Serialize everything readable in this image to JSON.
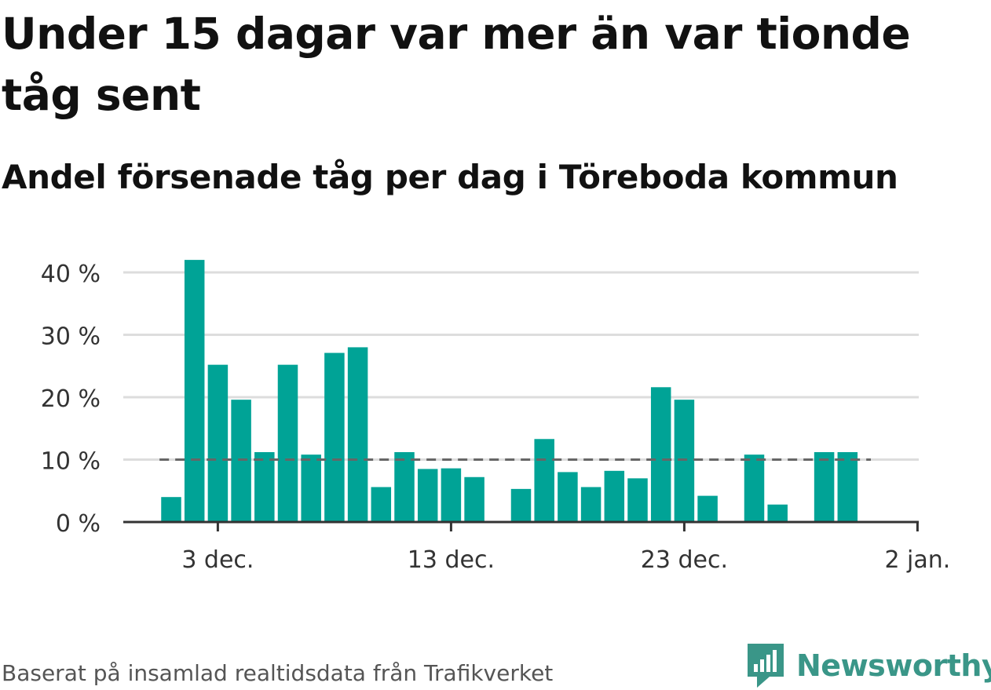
{
  "title": "Under 15 dagar var mer än var tionde tåg sent",
  "subtitle": "Andel försenade tåg per dag i Töreboda kommun",
  "source": "Baserat på insamlad realtidsdata från Trafikverket",
  "brand": {
    "name": "Newsworthy",
    "icon": "newsworthy-logo-icon"
  },
  "colors": {
    "bar": "#00a396",
    "threshold": "#666666",
    "grid": "#dddddd",
    "axis": "#333333"
  },
  "chart_data": {
    "type": "bar",
    "x": [
      "1 dec.",
      "2 dec.",
      "3 dec.",
      "4 dec.",
      "5 dec.",
      "6 dec.",
      "7 dec.",
      "8 dec.",
      "9 dec.",
      "10 dec.",
      "11 dec.",
      "12 dec.",
      "13 dec.",
      "14 dec.",
      "15 dec.",
      "16 dec.",
      "17 dec.",
      "18 dec.",
      "19 dec.",
      "20 dec.",
      "21 dec.",
      "22 dec.",
      "23 dec.",
      "24 dec.",
      "25 dec.",
      "26 dec.",
      "27 dec.",
      "28 dec.",
      "29 dec.",
      "30 dec.",
      "31 dec.",
      "1 jan.",
      "2 jan."
    ],
    "values": [
      4,
      42,
      25.2,
      19.6,
      11.2,
      25.2,
      10.8,
      27.1,
      28,
      5.6,
      11.2,
      8.5,
      8.6,
      7.2,
      null,
      5.3,
      13.3,
      8,
      5.6,
      8.2,
      7,
      21.6,
      19.6,
      4.2,
      null,
      10.8,
      2.8,
      null,
      11.2,
      11.2,
      null,
      null,
      null
    ],
    "threshold": 10,
    "ylim": [
      0,
      42
    ],
    "yticks": [
      0,
      10,
      20,
      30,
      40
    ],
    "ytick_labels": [
      "0 %",
      "10 %",
      "20 %",
      "30 %",
      "40 %"
    ],
    "xtick_labels": [
      "3 dec.",
      "13 dec.",
      "23 dec.",
      "2 jan."
    ],
    "xtick_positions": [
      "3 dec.",
      "13 dec.",
      "23 dec.",
      "2 jan."
    ],
    "grid": true,
    "legend": "none"
  }
}
